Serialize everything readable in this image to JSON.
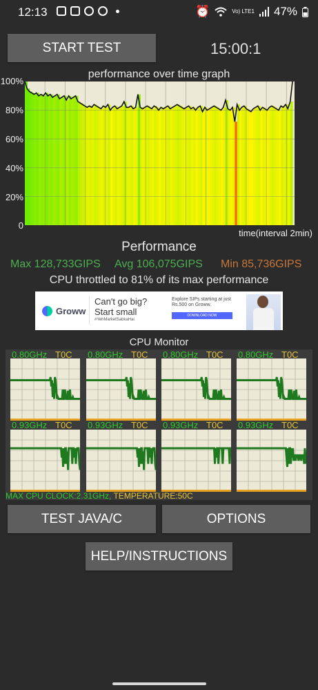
{
  "status_bar": {
    "time": "12:13",
    "network": "Vo) LTE1",
    "battery": "47%",
    "icons_left": [
      "photo-icon",
      "bag-icon",
      "reddit-icon",
      "cb-icon"
    ],
    "icons_right": [
      "alarm-icon",
      "wifi-icon",
      "signal-icon",
      "battery-icon"
    ]
  },
  "controls": {
    "start_test": "START TEST",
    "timer": "15:00:1",
    "test_java": "TEST JAVA/C",
    "options": "OPTIONS",
    "help": "HELP/INSTRUCTIONS"
  },
  "graph": {
    "title": "performance over time graph",
    "y_labels": [
      "100%",
      "80%",
      "60%",
      "40%",
      "20%",
      "0"
    ],
    "x_label": "time(interval 2min)"
  },
  "chart_data": {
    "type": "line",
    "title": "performance over time graph",
    "xlabel": "time(interval 2min)",
    "ylabel": "",
    "ylim": [
      0,
      100
    ],
    "y_ticks": [
      0,
      20,
      40,
      60,
      80,
      100
    ],
    "x_interval_min": 2,
    "series": [
      {
        "values": [
          100,
          95,
          93,
          92,
          91,
          92,
          90,
          91,
          90,
          92,
          90,
          91,
          89,
          90,
          91,
          88,
          89,
          90,
          87,
          90,
          88,
          89,
          90,
          86,
          85,
          84,
          83,
          82,
          83,
          82,
          84,
          83,
          82,
          81,
          83,
          82,
          84,
          80,
          82,
          83,
          81,
          82,
          83,
          86,
          82,
          82,
          83,
          81,
          82,
          91,
          82,
          81,
          82,
          83,
          82,
          81,
          83,
          82,
          80,
          82,
          81,
          82,
          83,
          81,
          82,
          83,
          84,
          83,
          82,
          81,
          82,
          83,
          81,
          82,
          80,
          82,
          83,
          79,
          82,
          80,
          81,
          82,
          83,
          82,
          81,
          80,
          82,
          87,
          81,
          80,
          82,
          72,
          84,
          80,
          82,
          83,
          81,
          80,
          79,
          81,
          82,
          83,
          80,
          82,
          81,
          80,
          82,
          83,
          82,
          81,
          80,
          83,
          82,
          84,
          81,
          86,
          100
        ]
      }
    ]
  },
  "performance": {
    "title": "Performance",
    "max": "Max 128,733GIPS",
    "avg": "Avg 106,075GIPS",
    "min": "Min 85,736GIPS",
    "throttle": "CPU throttled to 81% of its max performance",
    "colors": {
      "max": "#4caf50",
      "avg": "#4caf50",
      "min": "#c8773a"
    }
  },
  "ad": {
    "brand": "Groww",
    "headline_1": "Can't go big?",
    "headline_2": "Start small",
    "hashtag": "#YehMarketSabkaHai",
    "sip_text": "Explore SIPs starting at just Rs.500 on Groww.",
    "cta": "DOWNLOAD NOW"
  },
  "cpu_monitor": {
    "title": "CPU Monitor",
    "cores": [
      {
        "freq": "0.80GHz",
        "temp": "T0C",
        "pattern": "a"
      },
      {
        "freq": "0.80GHz",
        "temp": "T0C",
        "pattern": "a"
      },
      {
        "freq": "0.80GHz",
        "temp": "T0C",
        "pattern": "a"
      },
      {
        "freq": "0.80GHz",
        "temp": "T0C",
        "pattern": "a"
      },
      {
        "freq": "0.93GHz",
        "temp": "T0C",
        "pattern": "b"
      },
      {
        "freq": "0.93GHz",
        "temp": "T0C",
        "pattern": "b"
      },
      {
        "freq": "0.93GHz",
        "temp": "T0C",
        "pattern": "c"
      },
      {
        "freq": "0.93GHz",
        "temp": "T0C",
        "pattern": "d"
      }
    ],
    "footer_clock": "MAX CPU CLOCK:2.31GHz,",
    "footer_temp": " TEMPERATURE:50C"
  }
}
